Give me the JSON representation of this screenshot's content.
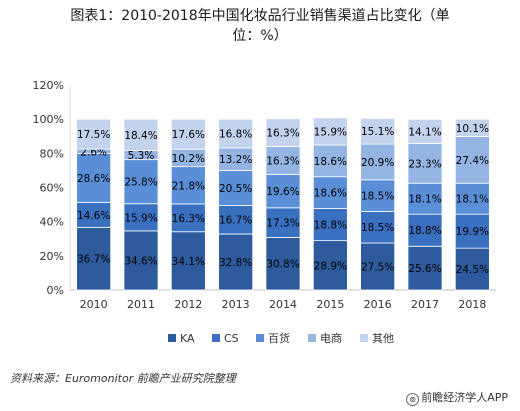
{
  "page": {
    "title_line1": "图表1：2010-2018年中国化妆品行业销售渠道占比变化（单",
    "title_line2": "位：%）",
    "source": "资料来源：Euromonitor 前瞻产业研究院整理",
    "brand": "前瞻经济学人APP",
    "brand_logo_glyph": "⊚"
  },
  "chart_data": {
    "type": "bar",
    "stacked": true,
    "categories": [
      "2010",
      "2011",
      "2012",
      "2013",
      "2014",
      "2015",
      "2016",
      "2017",
      "2018"
    ],
    "series": [
      {
        "name": "KA",
        "color": "#2e5b9e",
        "values": [
          36.7,
          34.6,
          34.1,
          32.8,
          30.8,
          28.9,
          27.5,
          25.6,
          24.5
        ],
        "labels": [
          "36.7%",
          "34.6%",
          "34.1%",
          "32.8%",
          "30.8%",
          "28.9%",
          "27.5%",
          "25.6%",
          "24.5%"
        ]
      },
      {
        "name": "CS",
        "color": "#3a70c0",
        "values": [
          14.6,
          15.9,
          16.3,
          16.7,
          17.3,
          18.8,
          18.5,
          18.8,
          19.9
        ],
        "labels": [
          "14.6%",
          "15.9%",
          "16.3%",
          "16.7%",
          "17.3%",
          "18.8%",
          "18.5%",
          "18.8%",
          "19.9%"
        ]
      },
      {
        "name": "百货",
        "color": "#5a8fd8",
        "values": [
          28.6,
          25.8,
          21.8,
          20.5,
          19.6,
          18.6,
          18.5,
          18.1,
          18.1
        ],
        "labels": [
          "28.6%",
          "25.8%",
          "21.8%",
          "20.5%",
          "19.6%",
          "18.6%",
          "18.5%",
          "18.1%",
          "18.1%"
        ]
      },
      {
        "name": "电商",
        "color": "#94b4e4",
        "values": [
          2.6,
          5.3,
          10.2,
          13.2,
          16.3,
          18.6,
          20.9,
          23.3,
          27.4
        ],
        "labels": [
          "2.6%",
          "5.3%",
          "10.2%",
          "13.2%",
          "16.3%",
          "18.6%",
          "20.9%",
          "23.3%",
          "27.4%"
        ]
      },
      {
        "name": "其他",
        "color": "#c3d3ee",
        "values": [
          17.5,
          18.4,
          17.6,
          16.8,
          16.3,
          15.9,
          15.1,
          14.1,
          10.1
        ],
        "labels": [
          "17.5%",
          "18.4%",
          "17.6%",
          "16.8%",
          "16.3%",
          "15.9%",
          "15.1%",
          "14.1%",
          "10.1%"
        ]
      }
    ],
    "ylim": [
      0,
      120
    ],
    "yticks": [
      "0%",
      "20%",
      "40%",
      "60%",
      "80%",
      "100%",
      "120%"
    ],
    "grid": false,
    "legend_position": "bottom",
    "label_color": "#000000"
  }
}
